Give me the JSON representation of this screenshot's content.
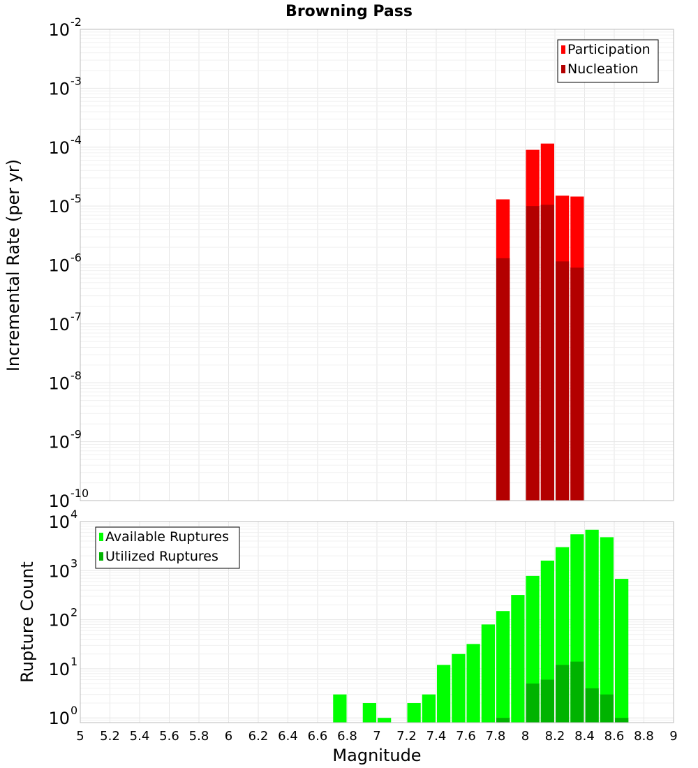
{
  "chart_data": [
    {
      "type": "bar",
      "title": "Browning Pass",
      "xlabel": "",
      "ylabel": "Incremental Rate (per yr)",
      "yscale": "log",
      "ylim": [
        1e-10,
        0.01
      ],
      "xlim": [
        5,
        9
      ],
      "y_ticks": [
        {
          "exp": -10
        },
        {
          "exp": -9
        },
        {
          "exp": -8
        },
        {
          "exp": -7
        },
        {
          "exp": -6
        },
        {
          "exp": -5
        },
        {
          "exp": -4
        },
        {
          "exp": -3
        },
        {
          "exp": -2
        }
      ],
      "bin_width": 0.1,
      "legend": [
        "Participation",
        "Nucleation"
      ],
      "legend_position": "top-right",
      "colors": {
        "Participation": "#ff0000",
        "Nucleation": "#b30000"
      },
      "series": [
        {
          "name": "Participation",
          "x": [
            7.85,
            8.05,
            8.15,
            8.25,
            8.35
          ],
          "values": [
            1.3e-05,
            9e-05,
            0.000115,
            1.5e-05,
            1.45e-05
          ]
        },
        {
          "name": "Nucleation",
          "x": [
            7.85,
            8.05,
            8.15,
            8.25,
            8.35
          ],
          "values": [
            1.3e-06,
            1e-05,
            1.05e-05,
            1.15e-06,
            9e-07
          ]
        }
      ]
    },
    {
      "type": "bar",
      "title": "",
      "xlabel": "Magnitude",
      "ylabel": "Rupture Count",
      "yscale": "log",
      "ylim": [
        0.8,
        10000
      ],
      "xlim": [
        5,
        9
      ],
      "x_ticks": [
        "5",
        "5.2",
        "5.4",
        "5.6",
        "5.8",
        "6",
        "6.2",
        "6.4",
        "6.6",
        "6.8",
        "7",
        "7.2",
        "7.4",
        "7.6",
        "7.8",
        "8",
        "8.2",
        "8.4",
        "8.6",
        "8.8",
        "9"
      ],
      "y_ticks": [
        {
          "exp": 0
        },
        {
          "exp": 1
        },
        {
          "exp": 2
        },
        {
          "exp": 3
        },
        {
          "exp": 4
        }
      ],
      "bin_width": 0.1,
      "legend": [
        "Available Ruptures",
        "Utilized Ruptures"
      ],
      "legend_position": "top-left",
      "colors": {
        "Available Ruptures": "#00ff00",
        "Utilized Ruptures": "#00b300"
      },
      "series": [
        {
          "name": "Available Ruptures",
          "x": [
            6.75,
            6.95,
            7.05,
            7.25,
            7.35,
            7.45,
            7.55,
            7.65,
            7.75,
            7.85,
            7.95,
            8.05,
            8.15,
            8.25,
            8.35,
            8.45,
            8.55,
            8.65
          ],
          "values": [
            3,
            2,
            1,
            2,
            3,
            12,
            20,
            32,
            80,
            150,
            320,
            780,
            1600,
            3000,
            5500,
            6800,
            4800,
            680
          ]
        },
        {
          "name": "Utilized Ruptures",
          "x": [
            7.85,
            8.05,
            8.15,
            8.25,
            8.35,
            8.45,
            8.55,
            8.65
          ],
          "values": [
            1,
            5,
            6,
            12,
            14,
            4,
            3,
            1
          ]
        }
      ]
    }
  ]
}
